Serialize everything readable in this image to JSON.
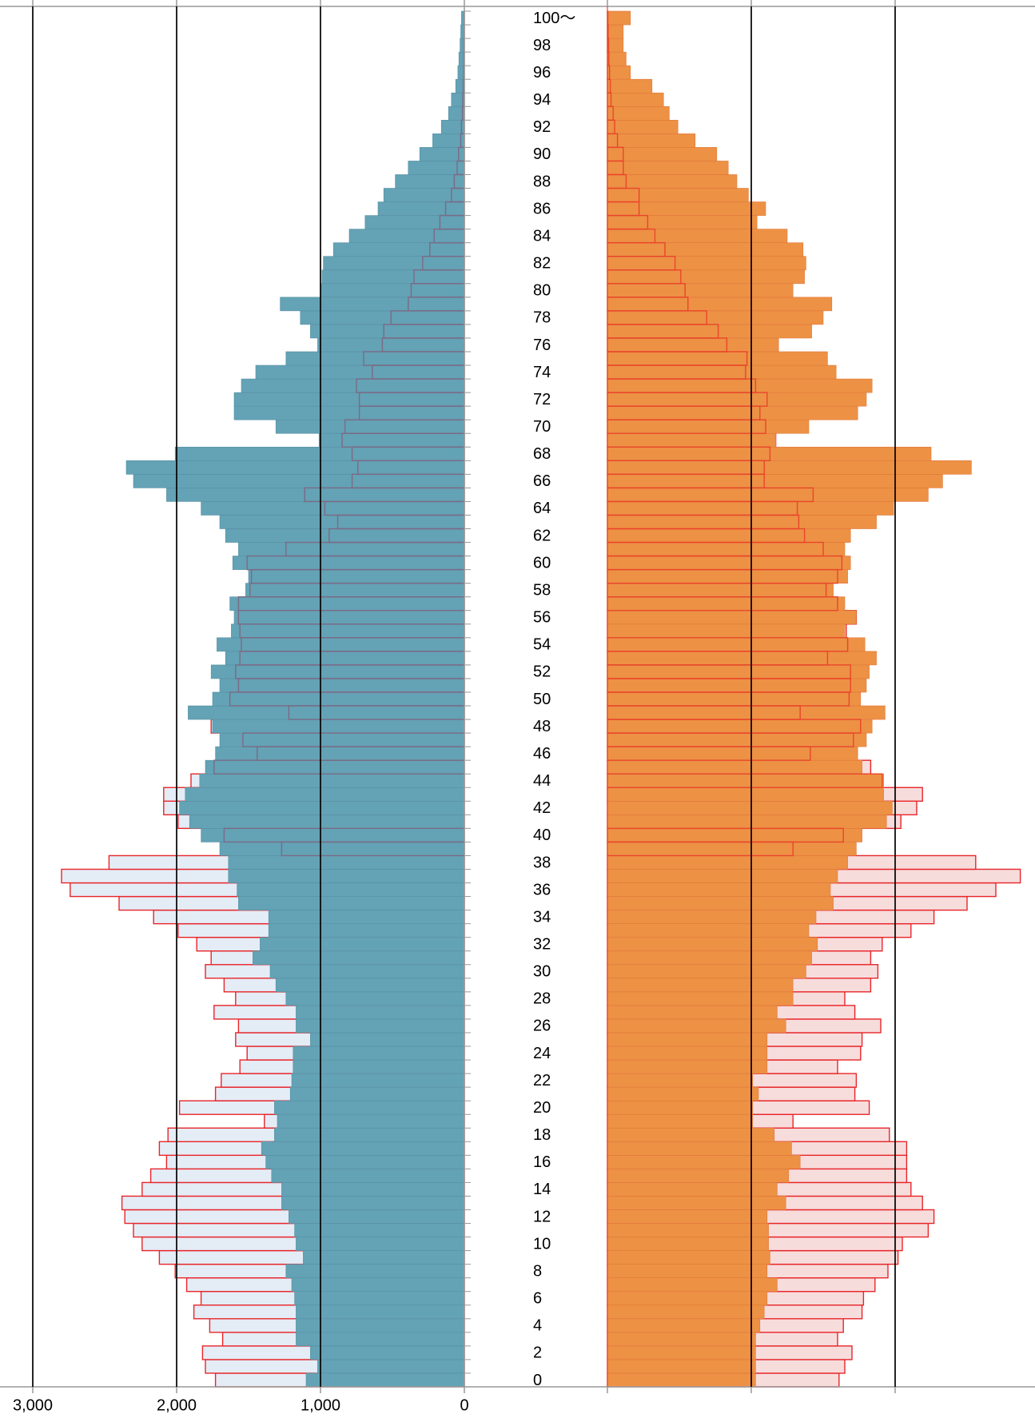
{
  "chart_data": {
    "type": "pyramid",
    "categories": [
      "0",
      null,
      "2",
      null,
      "4",
      null,
      "6",
      null,
      "8",
      null,
      "10",
      null,
      "12",
      null,
      "14",
      null,
      "16",
      null,
      "18",
      null,
      "20",
      null,
      "22",
      null,
      "24",
      null,
      "26",
      null,
      "28",
      null,
      "30",
      null,
      "32",
      null,
      "34",
      null,
      "36",
      null,
      "38",
      null,
      "40",
      null,
      "42",
      null,
      "44",
      null,
      "46",
      null,
      "48",
      null,
      "50",
      null,
      "52",
      null,
      "54",
      null,
      "56",
      null,
      "58",
      null,
      "60",
      null,
      "62",
      null,
      "64",
      null,
      "66",
      null,
      "68",
      null,
      "70",
      null,
      "72",
      null,
      "74",
      null,
      "76",
      null,
      "78",
      null,
      "80",
      null,
      "82",
      null,
      "84",
      null,
      "86",
      null,
      "88",
      null,
      "90",
      null,
      "92",
      null,
      "94",
      null,
      "96",
      null,
      "98",
      null,
      "100～"
    ],
    "xlim": [
      0,
      3000
    ],
    "xticks": [
      0,
      {
        "value": 1000,
        "label": "1,000"
      },
      {
        "value": 2000,
        "label": "2,000"
      },
      {
        "value": 3000,
        "label": "3,000"
      }
    ],
    "grid": true,
    "series": [
      {
        "side": "left",
        "style": "fill",
        "color": "#64a2b5",
        "stroke": "#5890a3",
        "values": [
          1100,
          1020,
          1070,
          1170,
          1170,
          1170,
          1180,
          1200,
          1240,
          1120,
          1170,
          1180,
          1220,
          1270,
          1270,
          1340,
          1380,
          1410,
          1320,
          1300,
          1320,
          1210,
          1200,
          1190,
          1190,
          1070,
          1170,
          1170,
          1240,
          1310,
          1350,
          1470,
          1420,
          1360,
          1360,
          1570,
          1580,
          1640,
          1640,
          1700,
          1830,
          1910,
          1980,
          1940,
          1840,
          1800,
          1730,
          1700,
          1750,
          1920,
          1750,
          1700,
          1760,
          1660,
          1720,
          1620,
          1600,
          1630,
          1520,
          1500,
          1610,
          1570,
          1660,
          1700,
          1830,
          2070,
          2300,
          2350,
          2010,
          1010,
          1310,
          1600,
          1600,
          1550,
          1450,
          1240,
          1020,
          1070,
          1140,
          1280,
          1000,
          990,
          980,
          910,
          800,
          690,
          600,
          560,
          480,
          390,
          310,
          220,
          160,
          110,
          90,
          60,
          45,
          38,
          30,
          25,
          20
        ]
      },
      {
        "side": "left",
        "style": "outline",
        "color": "#e4ecf6",
        "stroke": "#e8262a",
        "stroke_over": "#7a6b86",
        "values": [
          1730,
          1800,
          1820,
          1680,
          1770,
          1880,
          1830,
          1930,
          2010,
          2120,
          2240,
          2300,
          2360,
          2380,
          2240,
          2180,
          2070,
          2120,
          2060,
          1390,
          1980,
          1730,
          1690,
          1560,
          1510,
          1590,
          1570,
          1740,
          1590,
          1670,
          1800,
          1760,
          1860,
          1990,
          2160,
          2400,
          2740,
          2800,
          2470,
          1270,
          1670,
          1990,
          2090,
          2090,
          1900,
          1740,
          1440,
          1540,
          1760,
          1220,
          1630,
          1570,
          1590,
          1560,
          1550,
          1560,
          1570,
          1570,
          1490,
          1480,
          1510,
          1240,
          940,
          880,
          970,
          1110,
          780,
          740,
          780,
          850,
          830,
          730,
          730,
          750,
          640,
          700,
          570,
          560,
          510,
          390,
          370,
          350,
          290,
          240,
          210,
          170,
          130,
          90,
          70,
          50,
          40,
          25,
          20,
          13,
          10,
          8,
          5,
          4,
          3,
          2,
          1
        ]
      },
      {
        "side": "right",
        "style": "fill",
        "color": "#ed9145",
        "stroke": "#e0783a",
        "values": [
          1030,
          1030,
          1030,
          1030,
          1060,
          1090,
          1110,
          1180,
          1110,
          1130,
          1120,
          1120,
          1110,
          1240,
          1180,
          1260,
          1340,
          1280,
          1160,
          1010,
          1010,
          1050,
          1010,
          1110,
          1110,
          1110,
          1240,
          1180,
          1290,
          1290,
          1380,
          1420,
          1460,
          1400,
          1450,
          1570,
          1550,
          1600,
          1670,
          1730,
          1770,
          1940,
          1980,
          1920,
          1920,
          1770,
          1740,
          1800,
          1840,
          1930,
          1760,
          1800,
          1820,
          1870,
          1790,
          1650,
          1730,
          1650,
          1570,
          1670,
          1690,
          1650,
          1690,
          1870,
          1990,
          2230,
          2330,
          2530,
          2250,
          1170,
          1400,
          1740,
          1800,
          1840,
          1590,
          1530,
          1190,
          1420,
          1500,
          1560,
          1290,
          1370,
          1380,
          1360,
          1250,
          1040,
          1100,
          980,
          900,
          840,
          760,
          610,
          490,
          430,
          390,
          310,
          160,
          130,
          110,
          110,
          160
        ]
      },
      {
        "side": "right",
        "style": "outline",
        "color": "#f7dcdc",
        "stroke": "#e8262a",
        "stroke_over": "#e8462a",
        "values": [
          1610,
          1650,
          1700,
          1600,
          1640,
          1770,
          1780,
          1860,
          1950,
          2020,
          2050,
          2230,
          2270,
          2190,
          2110,
          2080,
          2080,
          2080,
          1960,
          1290,
          1820,
          1720,
          1730,
          1600,
          1760,
          1770,
          1900,
          1720,
          1650,
          1830,
          1880,
          1830,
          1910,
          2110,
          2270,
          2500,
          2700,
          2870,
          2560,
          1290,
          1640,
          2040,
          2150,
          2190,
          1910,
          1830,
          1410,
          1710,
          1760,
          1340,
          1680,
          1690,
          1690,
          1530,
          1670,
          1660,
          1730,
          1600,
          1520,
          1600,
          1630,
          1500,
          1370,
          1330,
          1320,
          1430,
          1090,
          1090,
          1130,
          1170,
          1100,
          1060,
          1110,
          1030,
          960,
          970,
          830,
          770,
          690,
          560,
          540,
          510,
          470,
          400,
          330,
          280,
          220,
          220,
          130,
          110,
          110,
          70,
          50,
          40,
          25,
          20,
          15,
          10,
          8,
          5,
          3
        ]
      }
    ]
  }
}
